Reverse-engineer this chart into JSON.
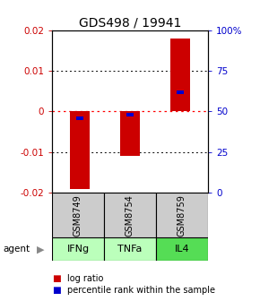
{
  "title": "GDS498 / 19941",
  "samples": [
    "GSM8749",
    "GSM8754",
    "GSM8759"
  ],
  "agents": [
    "IFNg",
    "TNFa",
    "IL4"
  ],
  "log_ratios": [
    -0.019,
    -0.011,
    0.018
  ],
  "percentile_ranks": [
    0.46,
    0.48,
    0.62
  ],
  "ylim": [
    -0.02,
    0.02
  ],
  "yticks_left": [
    -0.02,
    -0.01,
    0.0,
    0.01,
    0.02
  ],
  "ytick_left_labels": [
    "-0.02",
    "-0.01",
    "0",
    "0.01",
    "0.02"
  ],
  "yticks_right_pct": [
    0,
    25,
    50,
    75,
    100
  ],
  "ytick_right_labels": [
    "0",
    "25",
    "50",
    "75",
    "100%"
  ],
  "bar_color": "#cc0000",
  "rank_color": "#0000cc",
  "bar_width": 0.4,
  "rank_bar_width": 0.13,
  "agent_colors": [
    "#bbffbb",
    "#bbffbb",
    "#55dd55"
  ],
  "sample_bg_color": "#cccccc",
  "title_fontsize": 10,
  "tick_fontsize": 7.5,
  "legend_fontsize": 7,
  "sample_fontsize": 7,
  "agent_fontsize": 8
}
